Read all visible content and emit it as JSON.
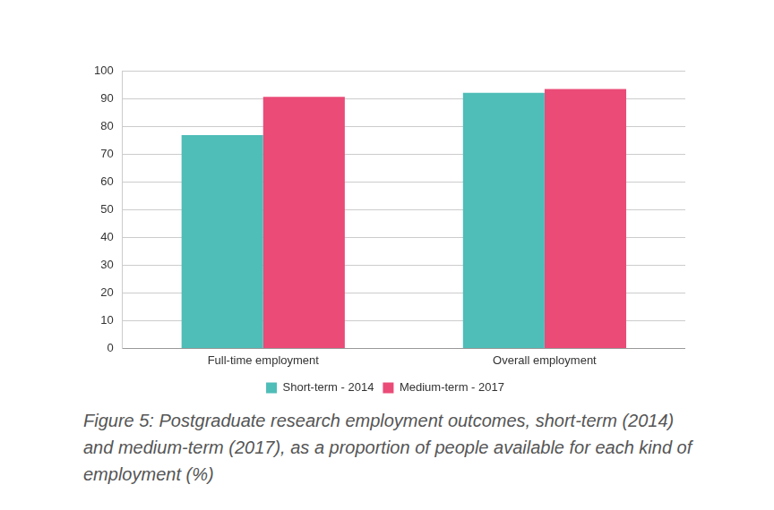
{
  "chart_data": {
    "type": "bar",
    "title": "Figure 5: Postgraduate research employment outcomes, short-term (2014) and medium-term (2017), as a proportion of people available for each kind of employment (%)",
    "categories": [
      "Full-time employment",
      "Overall employment"
    ],
    "series": [
      {
        "name": "Short-term - 2014",
        "color": "#4fbdb8",
        "values": [
          77,
          92.3
        ]
      },
      {
        "name": "Medium-term - 2017",
        "color": "#ea4b77",
        "values": [
          90.8,
          93.6
        ]
      }
    ],
    "ylim": [
      0,
      100
    ],
    "yticks": [
      0,
      10,
      20,
      30,
      40,
      50,
      60,
      70,
      80,
      90,
      100
    ],
    "grid": true,
    "legend": "bottom"
  }
}
